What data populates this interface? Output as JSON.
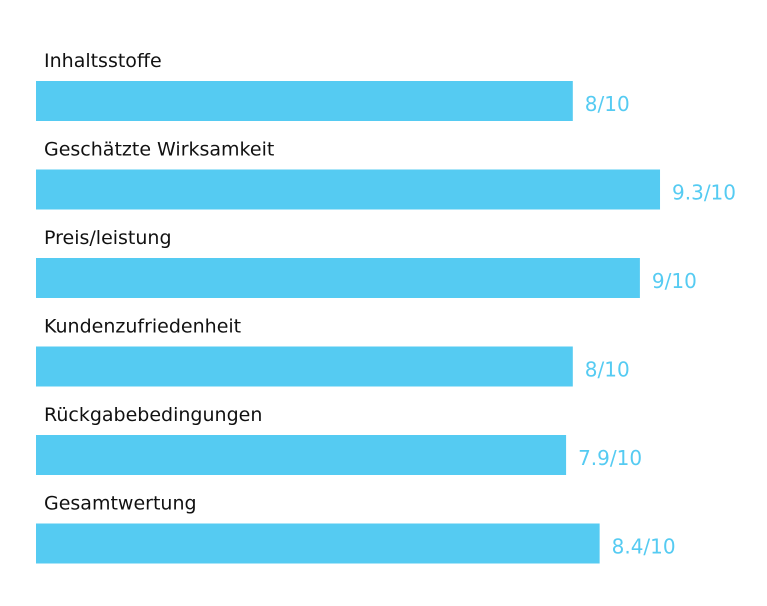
{
  "colors": {
    "bar": "#55cbf2",
    "value_text": "#55cbf2",
    "label_text": "#111111",
    "background": "#ffffff"
  },
  "chart_data": {
    "type": "bar",
    "orientation": "horizontal",
    "title": "",
    "xlabel": "",
    "ylabel": "",
    "grid": false,
    "legend": "none",
    "categories": [
      "Inhaltsstoffe",
      "Geschätzte Wirksamkeit",
      "Preis/leistung",
      "Kundenzufriedenheit",
      "Rückgabebedingungen",
      "Gesamtwertung"
    ],
    "values": [
      8,
      9.3,
      9,
      8,
      7.9,
      8.4
    ],
    "value_labels": [
      "8/10",
      "9.3/10",
      "9/10",
      "8/10",
      "7.9/10",
      "8.4/10"
    ],
    "xlim": [
      0,
      10
    ]
  }
}
